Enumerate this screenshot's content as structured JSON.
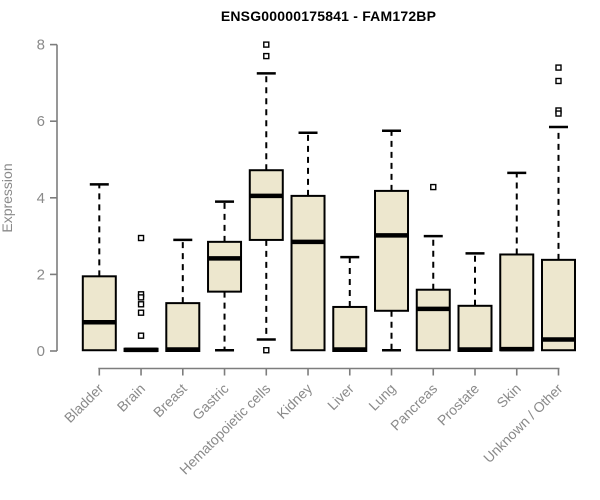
{
  "page": {
    "background": "#ffffff"
  },
  "chart_data": {
    "type": "boxplot",
    "title": "ENSG00000175841 - FAM172BP",
    "ylabel": "Expression",
    "xlabel": "",
    "ylim": [
      0,
      8
    ],
    "yticks": [
      0,
      2,
      4,
      6,
      8
    ],
    "grid": false,
    "legend": "none",
    "categories": [
      "Bladder",
      "Brain",
      "Breast",
      "Gastric",
      "Hematopoietic cells",
      "Kidney",
      "Liver",
      "Lung",
      "Pancreas",
      "Prostate",
      "Skin",
      "Unknown / Other"
    ],
    "series": [
      {
        "name": "Bladder",
        "low": 0.02,
        "q1": 0.02,
        "median": 0.75,
        "q3": 1.95,
        "high": 4.35,
        "outliers": []
      },
      {
        "name": "Brain",
        "low": 0.0,
        "q1": 0.0,
        "median": 0.03,
        "q3": 0.06,
        "high": 0.06,
        "outliers": [
          2.95,
          1.48,
          1.4,
          1.22,
          1.0,
          0.4
        ]
      },
      {
        "name": "Breast",
        "low": 0.0,
        "q1": 0.0,
        "median": 0.04,
        "q3": 1.25,
        "high": 2.9,
        "outliers": []
      },
      {
        "name": "Gastric",
        "low": 0.02,
        "q1": 1.55,
        "median": 2.42,
        "q3": 2.85,
        "high": 3.9,
        "outliers": []
      },
      {
        "name": "Hematopoietic cells",
        "low": 0.3,
        "q1": 2.9,
        "median": 4.05,
        "q3": 4.72,
        "high": 7.25,
        "outliers": [
          8.0,
          7.7,
          0.02
        ]
      },
      {
        "name": "Kidney",
        "low": 0.02,
        "q1": 0.02,
        "median": 2.85,
        "q3": 4.05,
        "high": 5.7,
        "outliers": []
      },
      {
        "name": "Liver",
        "low": 0.0,
        "q1": 0.0,
        "median": 0.04,
        "q3": 1.15,
        "high": 2.45,
        "outliers": []
      },
      {
        "name": "Lung",
        "low": 0.02,
        "q1": 1.05,
        "median": 3.02,
        "q3": 4.18,
        "high": 5.75,
        "outliers": []
      },
      {
        "name": "Pancreas",
        "low": 0.02,
        "q1": 0.02,
        "median": 1.1,
        "q3": 1.6,
        "high": 3.0,
        "outliers": [
          4.28
        ]
      },
      {
        "name": "Prostate",
        "low": 0.0,
        "q1": 0.0,
        "median": 0.04,
        "q3": 1.18,
        "high": 2.55,
        "outliers": []
      },
      {
        "name": "Skin",
        "low": 0.02,
        "q1": 0.02,
        "median": 0.05,
        "q3": 2.52,
        "high": 4.65,
        "outliers": []
      },
      {
        "name": "Unknown / Other",
        "low": 0.02,
        "q1": 0.02,
        "median": 0.3,
        "q3": 2.38,
        "high": 5.85,
        "outliers": [
          7.4,
          7.05,
          6.28,
          6.2
        ]
      }
    ],
    "colors": {
      "box_fill": "#EDE7CE",
      "box_stroke": "#000000",
      "median": "#000000",
      "whisker": "#000000",
      "axis": "#7d7d7d",
      "tick_label": "#8a8a8a",
      "title": "#000000",
      "background": "#ffffff"
    }
  }
}
